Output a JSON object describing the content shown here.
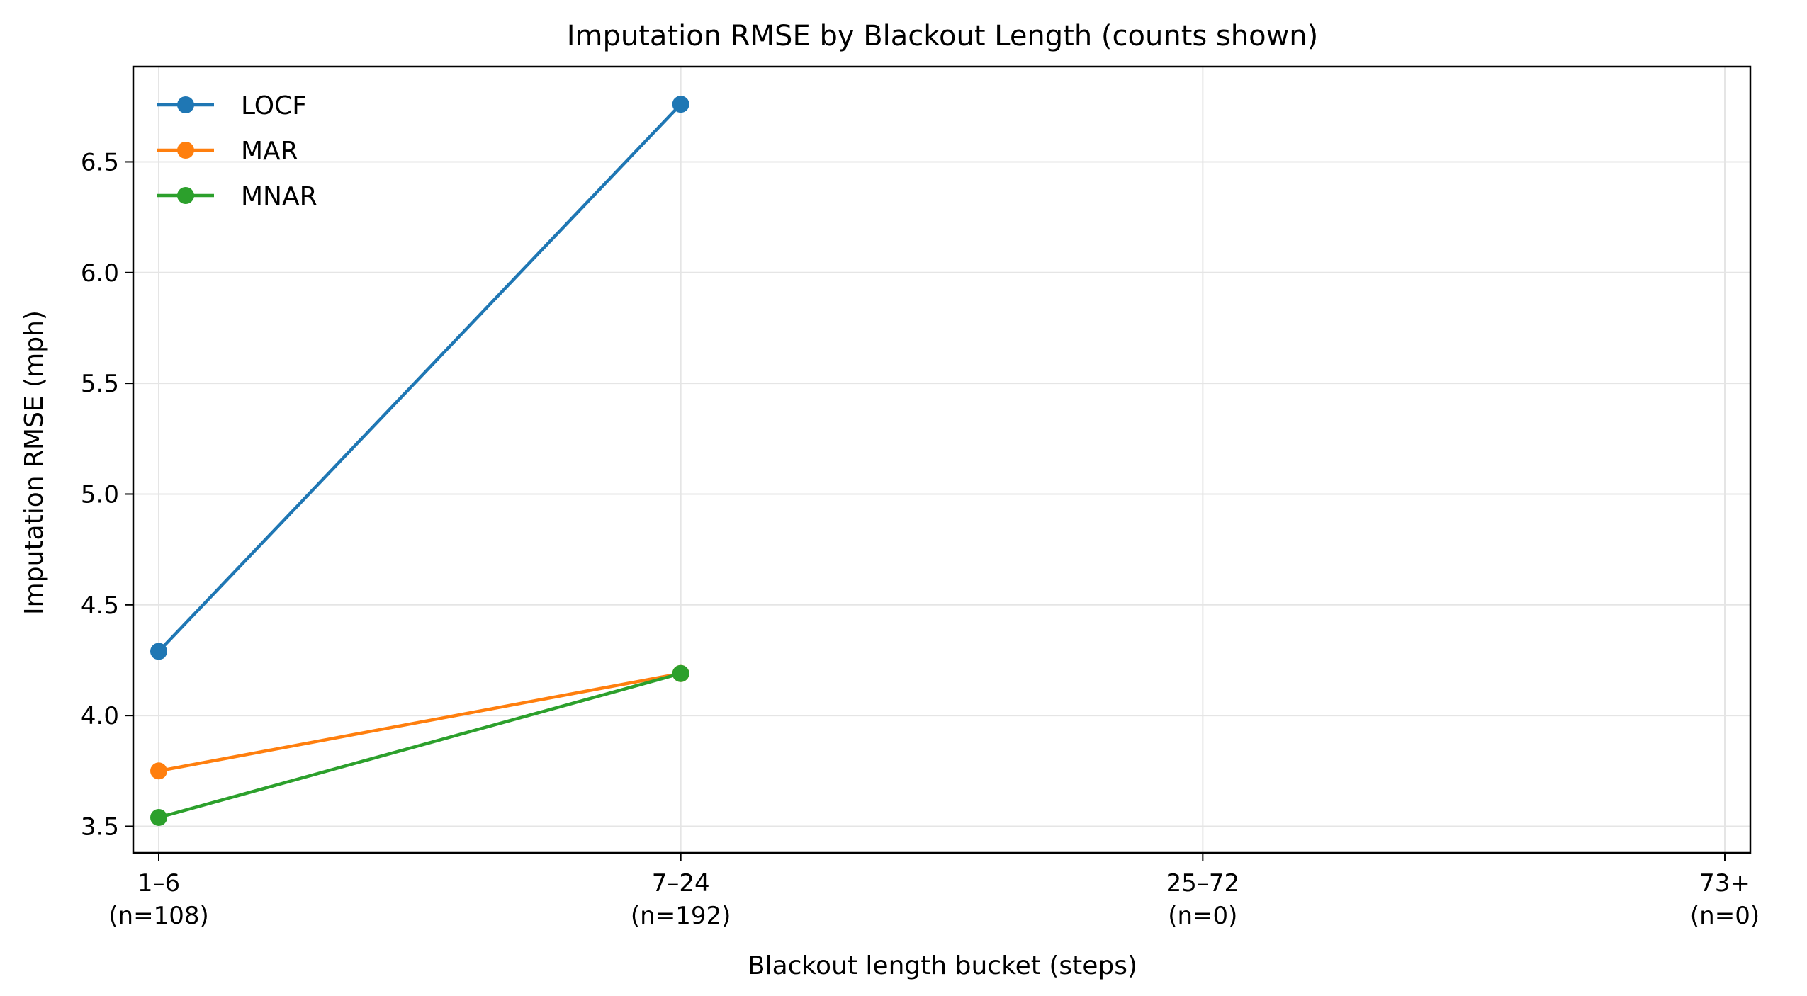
{
  "chart_data": {
    "type": "line",
    "title": "Imputation RMSE by Blackout Length (counts shown)",
    "xlabel": "Blackout length bucket (steps)",
    "ylabel": "Imputation RMSE (mph)",
    "categories": [
      "1–6",
      "7–24",
      "25–72",
      "73+"
    ],
    "category_counts": [
      "(n=108)",
      "(n=192)",
      "(n=0)",
      "(n=0)"
    ],
    "ylim": [
      3.38,
      6.93
    ],
    "yticks": [
      3.5,
      4.0,
      4.5,
      5.0,
      5.5,
      6.0,
      6.5
    ],
    "ytick_labels": [
      "3.5",
      "4.0",
      "4.5",
      "5.0",
      "5.5",
      "6.0",
      "6.5"
    ],
    "grid": true,
    "legend_position": "upper-left",
    "series": [
      {
        "name": "LOCF",
        "color": "#1f77b4",
        "values": [
          4.29,
          6.76,
          null,
          null
        ]
      },
      {
        "name": "MAR",
        "color": "#ff7f0e",
        "values": [
          3.75,
          4.19,
          null,
          null
        ]
      },
      {
        "name": "MNAR",
        "color": "#2ca02c",
        "values": [
          3.54,
          4.19,
          null,
          null
        ]
      }
    ]
  }
}
